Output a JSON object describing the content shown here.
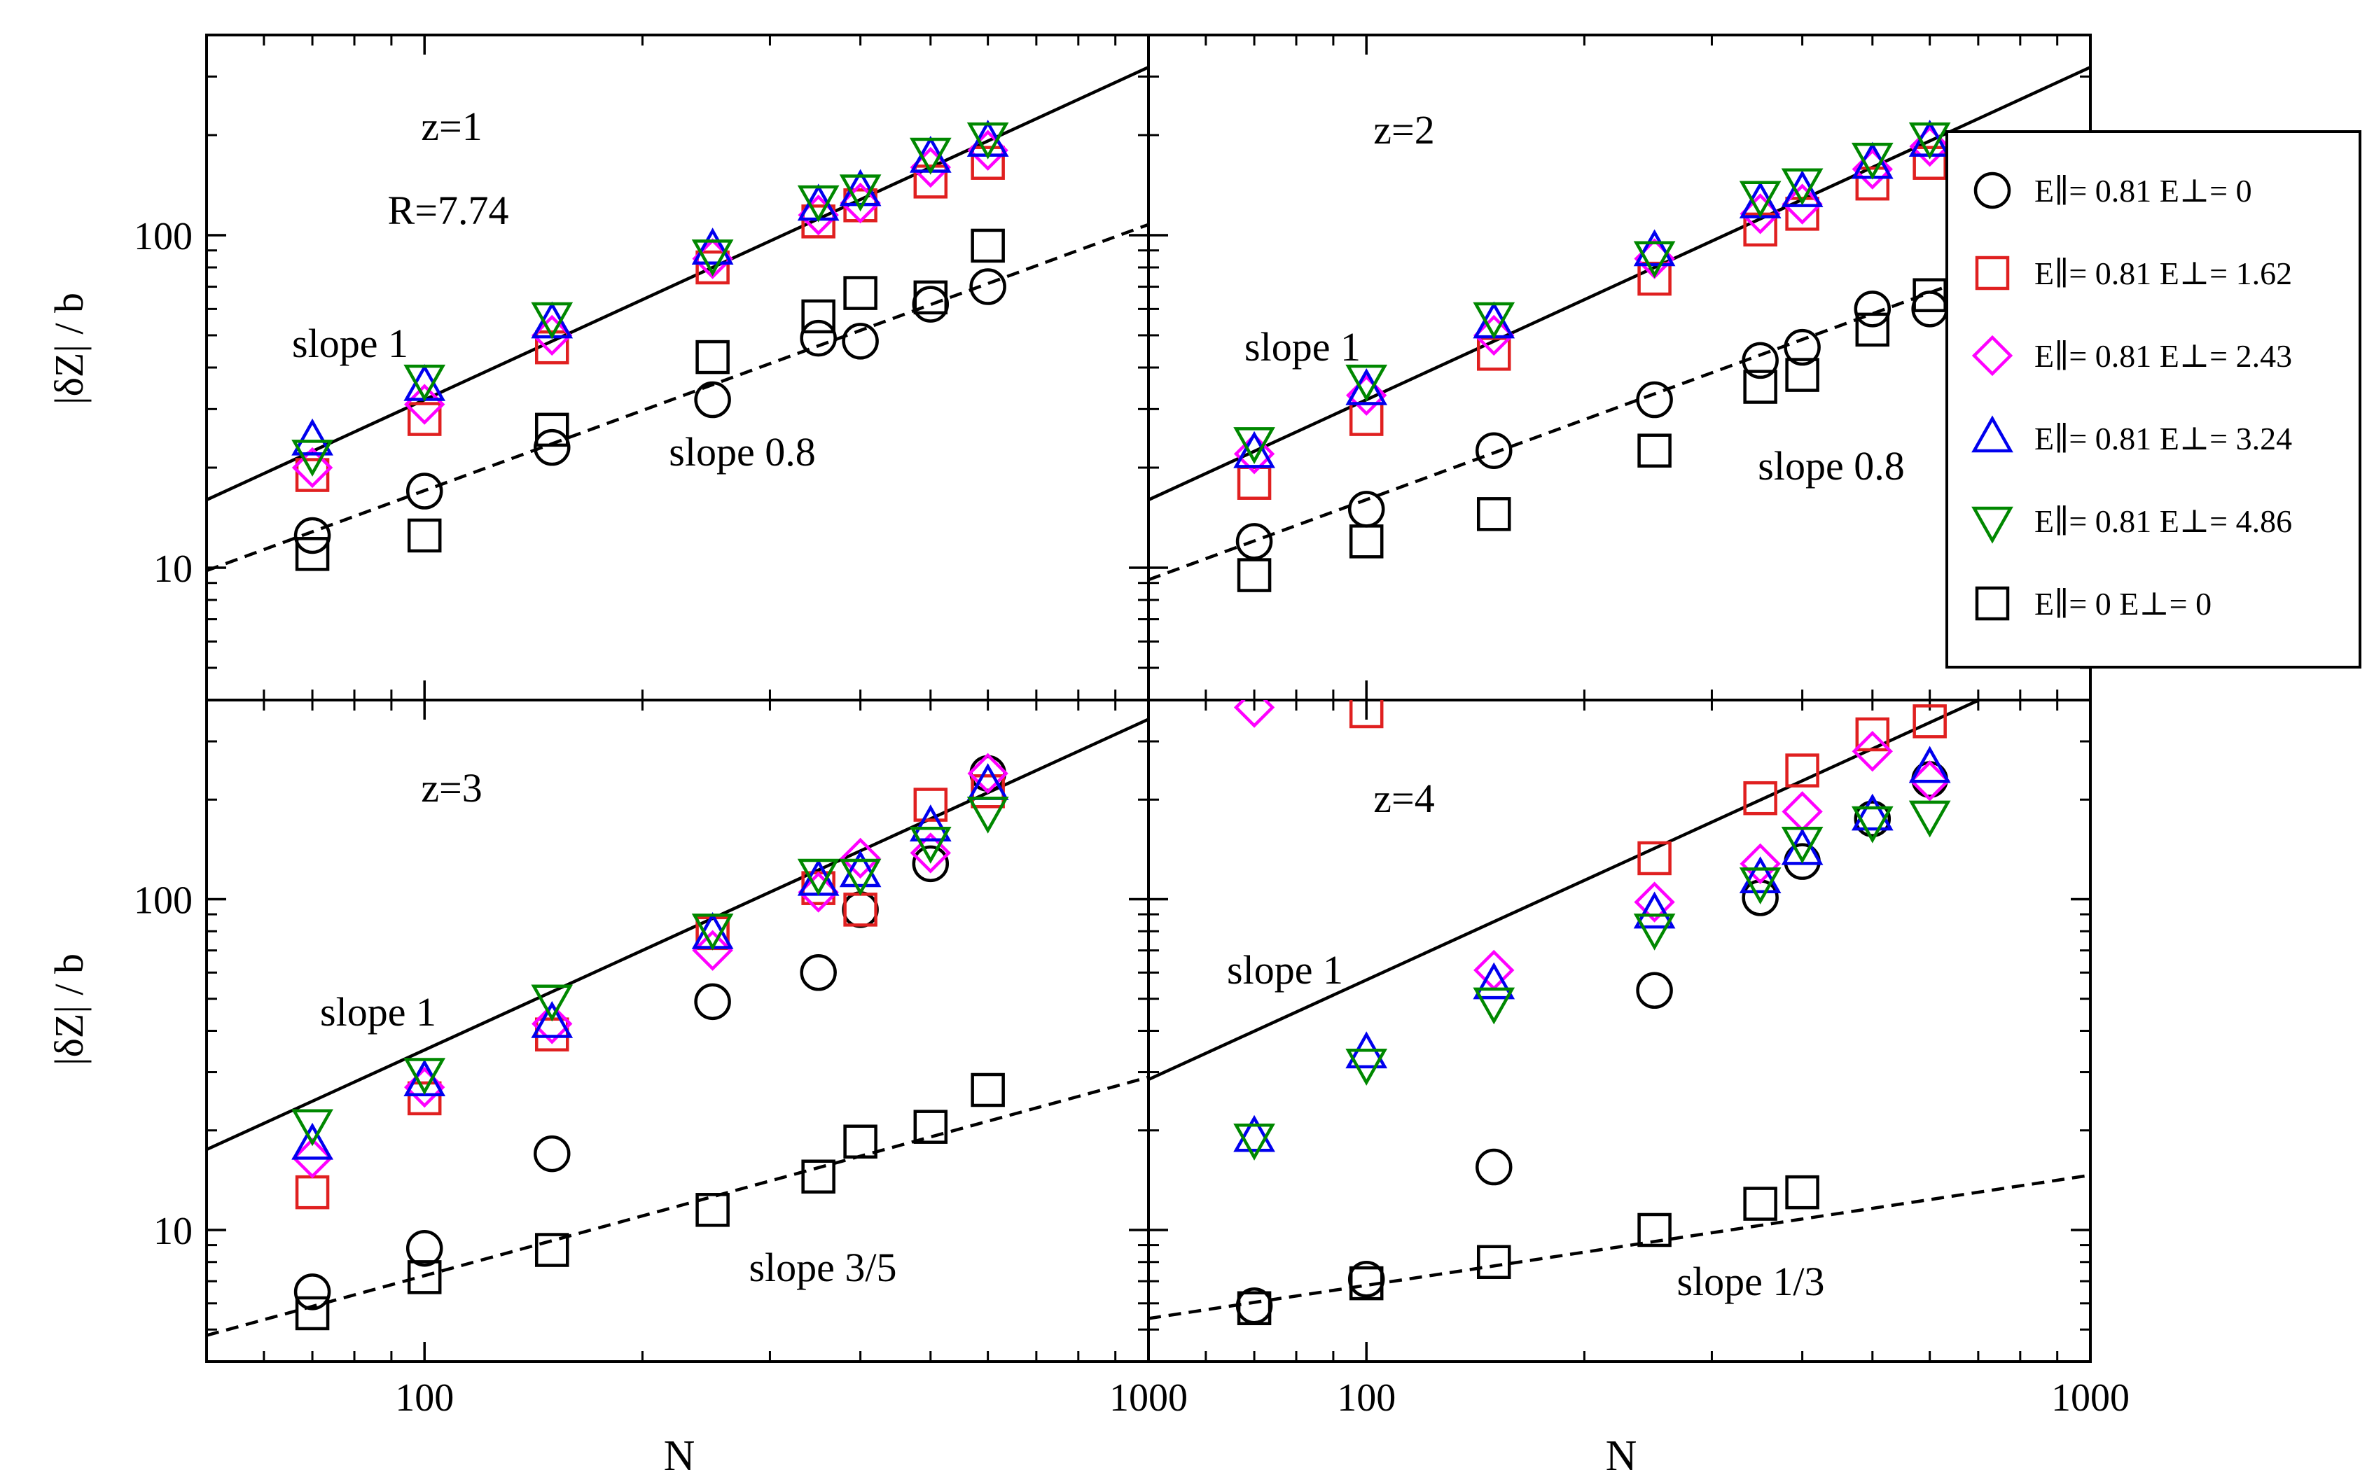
{
  "colors": {
    "E0": "#000000",
    "E162": "#e02020",
    "E243": "#ff00ff",
    "E324": "#0000ee",
    "E486": "#008800",
    "E00": "#000000"
  },
  "chart_data": {
    "type": "scatter",
    "shared": {
      "xscale": "log",
      "yscale": "log",
      "xlim": [
        50,
        1000
      ],
      "ylim": [
        4,
        400
      ],
      "xlabel": "N",
      "ylabel": "|δZ| / b",
      "xtick_labels": [
        "100",
        "1000"
      ],
      "ytick_labels": [
        "10",
        "100"
      ],
      "legend_position": "upper-right"
    },
    "legend": [
      {
        "key": "E0",
        "marker": "circle",
        "label": "E∥= 0.81  E⊥= 0"
      },
      {
        "key": "E162",
        "marker": "square",
        "label": "E∥= 0.81  E⊥= 1.62"
      },
      {
        "key": "E243",
        "marker": "diamond",
        "label": "E∥= 0.81  E⊥= 2.43"
      },
      {
        "key": "E324",
        "marker": "triangle-up",
        "label": "E∥= 0.81  E⊥= 3.24"
      },
      {
        "key": "E486",
        "marker": "triangle-down",
        "label": "E∥= 0.81  E⊥= 4.86"
      },
      {
        "key": "E00",
        "marker": "square",
        "label": "E∥= 0  E⊥= 0"
      }
    ],
    "panels": [
      {
        "id": "z1",
        "title": "z=1",
        "extra_label": "R=7.74",
        "lines": [
          {
            "style": "solid",
            "slope": 1,
            "y_at_50": 16,
            "label": "slope 1"
          },
          {
            "style": "dashed",
            "slope": 0.8,
            "y_at_50": 9.8,
            "label": "slope 0.8"
          }
        ],
        "series": {
          "E0": {
            "x": [
              70,
              100,
              150,
              250,
              350,
              400,
              500,
              600
            ],
            "y": [
              12.5,
              17,
              23,
              32,
              49,
              48,
              62,
              70
            ]
          },
          "E162": {
            "x": [
              70,
              100,
              150,
              250,
              350,
              400,
              500,
              600
            ],
            "y": [
              19,
              28,
              46,
              80,
              110,
              123,
              145,
              165
            ]
          },
          "E243": {
            "x": [
              70,
              100,
              150,
              250,
              350,
              400,
              500,
              600
            ],
            "y": [
              20,
              31,
              50,
              85,
              115,
              125,
              160,
              180
            ]
          },
          "E324": {
            "x": [
              70,
              100,
              150,
              250,
              350,
              400,
              500,
              600
            ],
            "y": [
              24,
              35,
              54,
              90,
              122,
              135,
              170,
              190
            ]
          },
          "E486": {
            "x": [
              70,
              100,
              150,
              250,
              350,
              400,
              500,
              600
            ],
            "y": [
              22,
              37,
              57,
              88,
              128,
              138,
              178,
              198
            ]
          },
          "E00": {
            "x": [
              70,
              100,
              150,
              250,
              350,
              400,
              500,
              600
            ],
            "y": [
              11,
              12.5,
              26,
              43,
              57,
              67,
              65,
              93
            ]
          }
        }
      },
      {
        "id": "z2",
        "title": "z=2",
        "extra_label": "",
        "lines": [
          {
            "style": "solid",
            "slope": 1,
            "y_at_50": 16,
            "label": "slope 1"
          },
          {
            "style": "dashed",
            "slope": 0.8,
            "y_at_50": 9.2,
            "label": "slope 0.8"
          }
        ],
        "series": {
          "E0": {
            "x": [
              70,
              100,
              150,
              250,
              350,
              400,
              500,
              600
            ],
            "y": [
              12,
              15,
              22.5,
              32,
              42,
              46,
              60,
              60
            ]
          },
          "E162": {
            "x": [
              70,
              100,
              150,
              250,
              350,
              400,
              500,
              600
            ],
            "y": [
              18,
              28,
              44,
              74,
              104,
              116,
              143,
              165
            ]
          },
          "E243": {
            "x": [
              70,
              100,
              150,
              250,
              350,
              400,
              500,
              600
            ],
            "y": [
              22,
              33,
              50,
              85,
              116,
              124,
              158,
              185
            ]
          },
          "E324": {
            "x": [
              70,
              100,
              150,
              250,
              350,
              400,
              500,
              600
            ],
            "y": [
              22,
              34,
              54,
              89,
              124,
              134,
              163,
              190
            ]
          },
          "E486": {
            "x": [
              70,
              100,
              150,
              250,
              350,
              400,
              500,
              600
            ],
            "y": [
              24,
              37,
              57,
              87,
              132,
              144,
              172,
              198
            ]
          },
          "E00": {
            "x": [
              70,
              100,
              150,
              250,
              350,
              400,
              500,
              600
            ],
            "y": [
              9.5,
              12,
              14.5,
              22.5,
              35,
              38,
              52,
              66
            ]
          }
        }
      },
      {
        "id": "z3",
        "title": "z=3",
        "extra_label": "",
        "lines": [
          {
            "style": "solid",
            "slope": 1,
            "y_at_50": 17.5,
            "label": "slope 1"
          },
          {
            "style": "dashed",
            "slope": 0.6,
            "y_at_50": 4.8,
            "label": "slope 3/5"
          }
        ],
        "series": {
          "E0": {
            "x": [
              70,
              100,
              150,
              250,
              350,
              400,
              500,
              600
            ],
            "y": [
              6.5,
              8.8,
              17,
              49,
              60,
              93,
              128,
              240
            ]
          },
          "E162": {
            "x": [
              70,
              100,
              150,
              250,
              350,
              400,
              500,
              600
            ],
            "y": [
              13,
              25,
              39,
              79,
              108,
              93,
              193,
              212
            ]
          },
          "E243": {
            "x": [
              70,
              100,
              150,
              250,
              350,
              400,
              500,
              600
            ],
            "y": [
              16.5,
              27,
              42,
              70,
              105,
              133,
              138,
              240
            ]
          },
          "E324": {
            "x": [
              70,
              100,
              150,
              250,
              350,
              400,
              500,
              600
            ],
            "y": [
              18,
              28,
              42,
              78,
              113,
              120,
              165,
              220
            ]
          },
          "E486": {
            "x": [
              70,
              100,
              150,
              250,
              350,
              400,
              500,
              600
            ],
            "y": [
              21,
              30,
              50,
              82,
              120,
              120,
              150,
              185
            ]
          },
          "E00": {
            "x": [
              70,
              100,
              150,
              250,
              350,
              400,
              500,
              600
            ],
            "y": [
              5.6,
              7.2,
              8.7,
              11.5,
              14.5,
              18.5,
              20.5,
              26.5
            ]
          }
        }
      },
      {
        "id": "z4",
        "title": "z=4",
        "extra_label": "",
        "lines": [
          {
            "style": "solid",
            "slope": 1,
            "y_at_50": 28.5,
            "label": "slope 1"
          },
          {
            "style": "dashed",
            "slope": 0.333,
            "y_at_50": 5.4,
            "label": "slope 1/3"
          }
        ],
        "series": {
          "E0": {
            "x": [
              70,
              100,
              150,
              250,
              350,
              400,
              500,
              600
            ],
            "y": [
              5.9,
              7.1,
              15.5,
              53,
              101,
              130,
              175,
              230
            ]
          },
          "E162": {
            "x": [
              100,
              250,
              350,
              400,
              500,
              600
            ],
            "y": [
              370,
              133,
              202,
              245,
              315,
              345
            ]
          },
          "E243": {
            "x": [
              70,
              150,
              250,
              350,
              400,
              500,
              600
            ],
            "y": [
              380,
              61,
              98,
              128,
              184,
              280,
              228
            ]
          },
          "E324": {
            "x": [
              70,
              100,
              150,
              250,
              350,
              400,
              500,
              600
            ],
            "y": [
              19,
              34,
              55,
              90,
              115,
              140,
              178,
              248
            ]
          },
          "E486": {
            "x": [
              70,
              100,
              150,
              250,
              350,
              400,
              500,
              600
            ],
            "y": [
              19,
              32,
              49,
              82,
              113,
              150,
              173,
              180
            ]
          },
          "E00": {
            "x": [
              70,
              100,
              150,
              250,
              350,
              400
            ],
            "y": [
              5.8,
              6.9,
              8,
              10,
              12,
              13
            ]
          }
        }
      }
    ]
  }
}
